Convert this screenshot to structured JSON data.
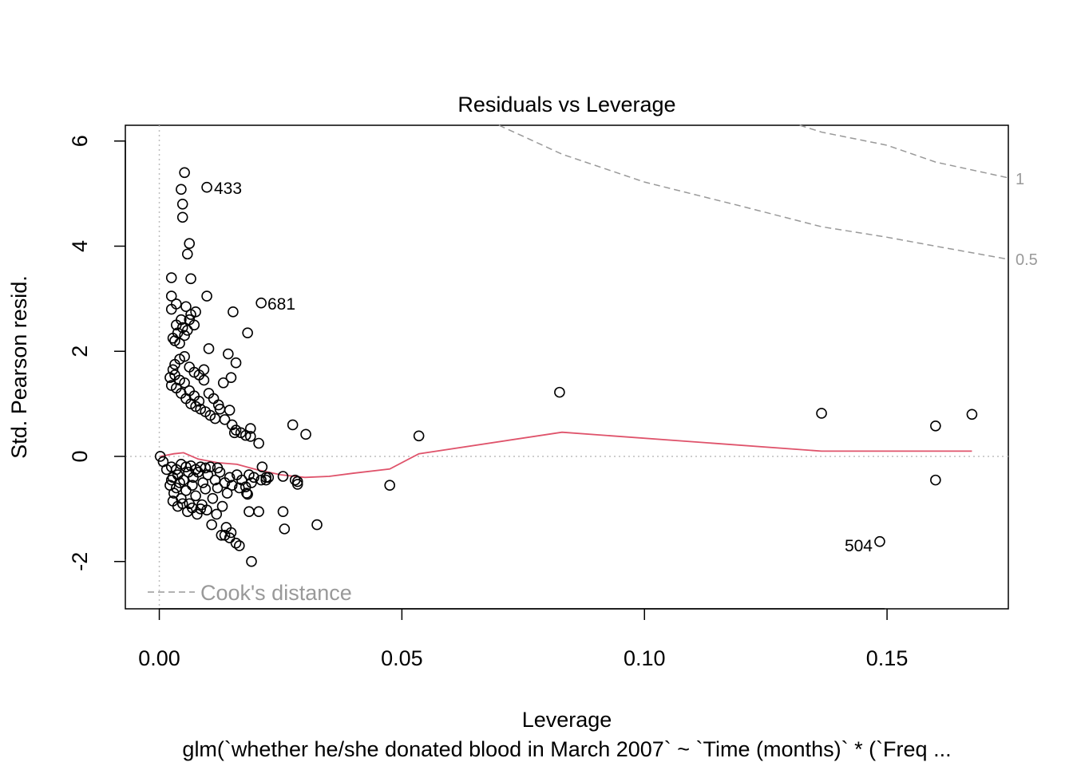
{
  "chart_data": {
    "type": "scatter",
    "title": "Residuals vs Leverage",
    "xlabel": "Leverage",
    "ylabel": "Std. Pearson resid.",
    "subtitle": "glm(`whether he/she donated blood in March 2007` ~ `Time (months)` * (`Freq ...",
    "xlim": [
      -0.007,
      0.175
    ],
    "ylim": [
      -2.9,
      6.3
    ],
    "x_ticks": [
      0.0,
      0.05,
      0.1,
      0.15
    ],
    "x_tick_labels": [
      "0.00",
      "0.05",
      "0.10",
      "0.15"
    ],
    "y_ticks": [
      -2,
      0,
      2,
      4,
      6
    ],
    "y_tick_labels": [
      "-2",
      "0",
      "2",
      "4",
      "6"
    ],
    "grid": false,
    "legend": {
      "position": "bottom-left",
      "entries": [
        {
          "label": "Cook's distance",
          "style": "dashed",
          "color": "#999999"
        }
      ]
    },
    "colors": {
      "points": "#000000",
      "smoother": "#DF536B",
      "cooks": "#999999",
      "reference": "#BEBEBE"
    },
    "series": [
      {
        "name": "residuals",
        "type": "scatter",
        "points": [
          [
            0.0002,
            0.0
          ],
          [
            0.0008,
            -0.1
          ],
          [
            0.0015,
            -0.25
          ],
          [
            0.0025,
            -0.45
          ],
          [
            0.0022,
            -0.55
          ],
          [
            0.0028,
            -0.4
          ],
          [
            0.0035,
            -0.6
          ],
          [
            0.003,
            -0.7
          ],
          [
            0.0038,
            -0.35
          ],
          [
            0.0042,
            -0.5
          ],
          [
            0.0045,
            -0.8
          ],
          [
            0.005,
            -0.45
          ],
          [
            0.0055,
            -0.65
          ],
          [
            0.006,
            -0.3
          ],
          [
            0.0062,
            -0.9
          ],
          [
            0.0068,
            -0.55
          ],
          [
            0.007,
            -0.4
          ],
          [
            0.0075,
            -0.75
          ],
          [
            0.008,
            -0.3
          ],
          [
            0.0085,
            -1.0
          ],
          [
            0.009,
            -0.5
          ],
          [
            0.0095,
            -0.62
          ],
          [
            0.01,
            -0.35
          ],
          [
            0.011,
            -0.8
          ],
          [
            0.0115,
            -0.45
          ],
          [
            0.012,
            -0.6
          ],
          [
            0.0125,
            -0.3
          ],
          [
            0.013,
            -0.95
          ],
          [
            0.0135,
            -0.5
          ],
          [
            0.014,
            -0.7
          ],
          [
            0.0145,
            -0.4
          ],
          [
            0.015,
            -0.55
          ],
          [
            0.016,
            -0.35
          ],
          [
            0.0165,
            -0.6
          ],
          [
            0.017,
            -0.45
          ],
          [
            0.018,
            -0.7
          ],
          [
            0.0185,
            -0.35
          ],
          [
            0.019,
            -0.5
          ],
          [
            0.0195,
            -0.4
          ],
          [
            0.021,
            -0.45
          ],
          [
            0.022,
            -0.4
          ],
          [
            0.0025,
            -0.2
          ],
          [
            0.0035,
            -0.25
          ],
          [
            0.0045,
            -0.15
          ],
          [
            0.0055,
            -0.2
          ],
          [
            0.0065,
            -0.18
          ],
          [
            0.0075,
            -0.25
          ],
          [
            0.0085,
            -0.2
          ],
          [
            0.0095,
            -0.22
          ],
          [
            0.0105,
            -0.2
          ],
          [
            0.012,
            -0.22
          ],
          [
            0.0028,
            -0.85
          ],
          [
            0.0038,
            -0.95
          ],
          [
            0.0048,
            -0.9
          ],
          [
            0.0058,
            -1.05
          ],
          [
            0.0068,
            -0.98
          ],
          [
            0.0078,
            -1.1
          ],
          [
            0.0088,
            -0.92
          ],
          [
            0.0098,
            -1.02
          ],
          [
            0.0108,
            -1.3
          ],
          [
            0.0118,
            -1.1
          ],
          [
            0.0128,
            -1.5
          ],
          [
            0.0138,
            -1.35
          ],
          [
            0.0148,
            -1.45
          ],
          [
            0.0158,
            -1.65
          ],
          [
            0.0145,
            -1.55
          ],
          [
            0.0135,
            -1.5
          ],
          [
            0.0165,
            -1.7
          ],
          [
            0.019,
            -2.0
          ],
          [
            0.0185,
            -1.05
          ],
          [
            0.0205,
            -1.05
          ],
          [
            0.0255,
            -1.05
          ],
          [
            0.0258,
            -1.38
          ],
          [
            0.0325,
            -1.3
          ],
          [
            0.0178,
            -0.58
          ],
          [
            0.0182,
            -0.72
          ],
          [
            0.0212,
            -0.2
          ],
          [
            0.022,
            -0.45
          ],
          [
            0.0255,
            -0.38
          ],
          [
            0.0285,
            -0.48
          ],
          [
            0.028,
            -0.45
          ],
          [
            0.0285,
            -0.53
          ],
          [
            0.0475,
            -0.55
          ],
          [
            0.0535,
            0.39
          ],
          [
            0.0275,
            0.6
          ],
          [
            0.0302,
            0.42
          ],
          [
            0.0205,
            0.25
          ],
          [
            0.0188,
            0.53
          ],
          [
            0.0188,
            0.38
          ],
          [
            0.0168,
            0.45
          ],
          [
            0.0178,
            0.4
          ],
          [
            0.0155,
            0.45
          ],
          [
            0.015,
            0.6
          ],
          [
            0.0158,
            0.5
          ],
          [
            0.0115,
            0.72
          ],
          [
            0.0125,
            0.9
          ],
          [
            0.0135,
            0.7
          ],
          [
            0.0145,
            0.88
          ],
          [
            0.0105,
            0.78
          ],
          [
            0.0095,
            0.85
          ],
          [
            0.0085,
            0.9
          ],
          [
            0.0075,
            0.95
          ],
          [
            0.0065,
            1.0
          ],
          [
            0.0055,
            1.1
          ],
          [
            0.0045,
            1.2
          ],
          [
            0.0035,
            1.3
          ],
          [
            0.0025,
            1.35
          ],
          [
            0.0022,
            1.5
          ],
          [
            0.0032,
            1.55
          ],
          [
            0.0042,
            1.45
          ],
          [
            0.0052,
            1.4
          ],
          [
            0.0062,
            1.25
          ],
          [
            0.0072,
            1.15
          ],
          [
            0.0082,
            1.05
          ],
          [
            0.0092,
            1.45
          ],
          [
            0.0102,
            1.2
          ],
          [
            0.0112,
            1.1
          ],
          [
            0.0122,
            0.98
          ],
          [
            0.0132,
            1.4
          ],
          [
            0.0148,
            1.5
          ],
          [
            0.0158,
            1.78
          ],
          [
            0.0142,
            1.95
          ],
          [
            0.0032,
            1.75
          ],
          [
            0.0042,
            1.85
          ],
          [
            0.0052,
            1.9
          ],
          [
            0.0062,
            1.7
          ],
          [
            0.0072,
            1.6
          ],
          [
            0.0082,
            1.55
          ],
          [
            0.0092,
            1.65
          ],
          [
            0.0028,
            1.65
          ],
          [
            0.0032,
            2.2
          ],
          [
            0.0042,
            2.15
          ],
          [
            0.0028,
            2.25
          ],
          [
            0.0038,
            2.35
          ],
          [
            0.0048,
            2.45
          ],
          [
            0.0052,
            2.3
          ],
          [
            0.0058,
            2.4
          ],
          [
            0.0062,
            2.6
          ],
          [
            0.0072,
            2.5
          ],
          [
            0.0035,
            2.5
          ],
          [
            0.0045,
            2.6
          ],
          [
            0.0025,
            2.8
          ],
          [
            0.0035,
            2.9
          ],
          [
            0.0055,
            2.85
          ],
          [
            0.0065,
            2.7
          ],
          [
            0.0075,
            2.75
          ],
          [
            0.0025,
            3.05
          ],
          [
            0.0098,
            3.05
          ],
          [
            0.0025,
            3.4
          ],
          [
            0.0065,
            3.38
          ],
          [
            0.0058,
            3.85
          ],
          [
            0.0062,
            4.05
          ],
          [
            0.0048,
            4.55
          ],
          [
            0.0048,
            4.8
          ],
          [
            0.0045,
            5.08
          ],
          [
            0.0052,
            5.4
          ],
          [
            0.0098,
            5.12
          ],
          [
            0.0102,
            2.05
          ],
          [
            0.0152,
            2.75
          ],
          [
            0.0182,
            2.35
          ],
          [
            0.021,
            2.92
          ],
          [
            0.0825,
            1.22
          ],
          [
            0.1365,
            0.82
          ],
          [
            0.16,
            0.58
          ],
          [
            0.1675,
            0.8
          ],
          [
            0.16,
            -0.45
          ],
          [
            0.1485,
            -1.62
          ],
          [
            0.0225,
            -0.4
          ]
        ]
      }
    ],
    "smoother": [
      [
        0.0002,
        0.0
      ],
      [
        0.003,
        0.05
      ],
      [
        0.005,
        0.07
      ],
      [
        0.008,
        -0.05
      ],
      [
        0.012,
        -0.12
      ],
      [
        0.016,
        -0.15
      ],
      [
        0.02,
        -0.25
      ],
      [
        0.025,
        -0.35
      ],
      [
        0.03,
        -0.4
      ],
      [
        0.035,
        -0.38
      ],
      [
        0.04,
        -0.32
      ],
      [
        0.0475,
        -0.24
      ],
      [
        0.0535,
        0.05
      ],
      [
        0.083,
        0.46
      ],
      [
        0.1365,
        0.1
      ],
      [
        0.16,
        0.1
      ],
      [
        0.1675,
        0.1
      ]
    ],
    "cooks_distance_contours": [
      {
        "level": "0.5",
        "label": "0.5",
        "points": [
          [
            0.07,
            6.3
          ],
          [
            0.075,
            6.09
          ],
          [
            0.083,
            5.75
          ],
          [
            0.1,
            5.22
          ],
          [
            0.12,
            4.76
          ],
          [
            0.1365,
            4.37
          ],
          [
            0.15,
            4.17
          ],
          [
            0.16,
            4.0
          ],
          [
            0.175,
            3.75
          ]
        ]
      },
      {
        "level": "1",
        "label": "1",
        "points": [
          [
            0.132,
            6.3
          ],
          [
            0.1365,
            6.17
          ],
          [
            0.15,
            5.92
          ],
          [
            0.16,
            5.6
          ],
          [
            0.175,
            5.3
          ]
        ]
      }
    ],
    "annotations": [
      {
        "text": "433",
        "point": [
          0.0098,
          5.12
        ],
        "side": "right"
      },
      {
        "text": "681",
        "point": [
          0.021,
          2.92
        ],
        "side": "right"
      },
      {
        "text": "504",
        "point": [
          0.1485,
          -1.62
        ],
        "side": "left"
      }
    ]
  }
}
